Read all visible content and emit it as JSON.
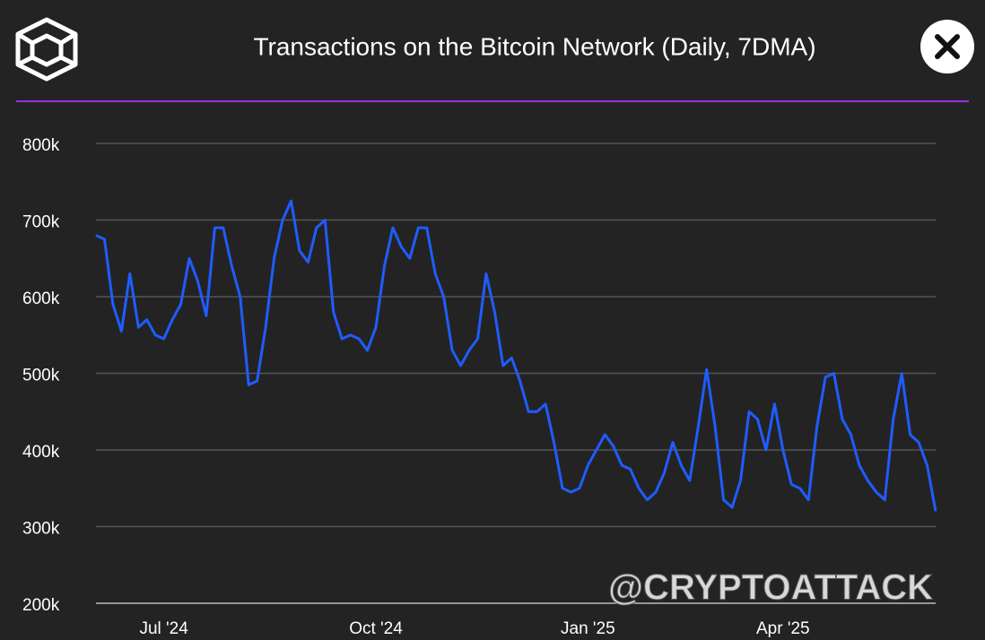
{
  "chart_data": {
    "type": "line",
    "title": "Transactions on the Bitcoin Network (Daily, 7DMA)",
    "watermark": "@CRYPTOATTACK",
    "categories": [
      null,
      null,
      null,
      null,
      null,
      null,
      null,
      null,
      "Jul '24",
      null,
      null,
      null,
      null,
      null,
      null,
      null,
      null,
      null,
      null,
      null,
      null,
      null,
      null,
      null,
      null,
      null,
      null,
      null,
      null,
      null,
      null,
      null,
      null,
      "Oct '24",
      null,
      null,
      null,
      null,
      null,
      null,
      null,
      null,
      null,
      null,
      null,
      null,
      null,
      null,
      null,
      null,
      null,
      null,
      null,
      null,
      null,
      null,
      null,
      null,
      "Jan '25",
      null,
      null,
      null,
      null,
      null,
      null,
      null,
      null,
      null,
      null,
      null,
      null,
      null,
      null,
      null,
      null,
      null,
      null,
      null,
      null,
      null,
      null,
      "Apr '25",
      null,
      null,
      null,
      null,
      null,
      null,
      null,
      null,
      null,
      null,
      null,
      null,
      null,
      null,
      null,
      null,
      null,
      null
    ],
    "series": [
      {
        "name": "Transactions",
        "color": "#1f5cff",
        "values": [
          680000,
          675000,
          590000,
          555000,
          630000,
          560000,
          570000,
          550000,
          545000,
          570000,
          590000,
          650000,
          620000,
          575000,
          690000,
          690000,
          640000,
          600000,
          485000,
          490000,
          560000,
          650000,
          700000,
          725000,
          660000,
          645000,
          690000,
          700000,
          580000,
          545000,
          550000,
          545000,
          530000,
          560000,
          640000,
          690000,
          665000,
          650000,
          690000,
          690000,
          630000,
          600000,
          530000,
          510000,
          530000,
          545000,
          630000,
          580000,
          510000,
          520000,
          490000,
          450000,
          450000,
          460000,
          410000,
          350000,
          345000,
          350000,
          380000,
          400000,
          420000,
          405000,
          380000,
          375000,
          350000,
          335000,
          345000,
          370000,
          410000,
          380000,
          360000,
          430000,
          505000,
          430000,
          335000,
          325000,
          360000,
          450000,
          440000,
          400000,
          460000,
          400000,
          355000,
          350000,
          335000,
          430000,
          495000,
          500000,
          440000,
          420000,
          380000,
          360000,
          345000,
          335000,
          440000,
          500000,
          420000,
          410000,
          380000,
          320000
        ]
      }
    ],
    "ylim": [
      200000,
      800000
    ],
    "yticks": [
      {
        "value": 200000,
        "label": "200k"
      },
      {
        "value": 300000,
        "label": "300k"
      },
      {
        "value": 400000,
        "label": "400k"
      },
      {
        "value": 500000,
        "label": "500k"
      },
      {
        "value": 600000,
        "label": "600k"
      },
      {
        "value": 700000,
        "label": "700k"
      },
      {
        "value": 800000,
        "label": "800k"
      }
    ],
    "grid": true
  }
}
